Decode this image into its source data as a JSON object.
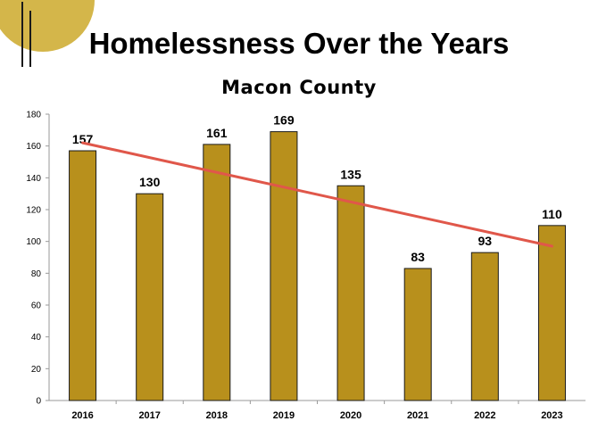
{
  "header": {
    "title": "Homelessness Over the Years",
    "subtitle": "Macon County"
  },
  "colors": {
    "bar": "#b8901c",
    "bar_stroke": "#1a1a1a",
    "trendline": "#e0574a",
    "decor_circle": "#d4b64a"
  },
  "chart_data": {
    "type": "bar",
    "title": "Macon County",
    "categories": [
      "2016",
      "2017",
      "2018",
      "2019",
      "2020",
      "2021",
      "2022",
      "2023"
    ],
    "values": [
      157,
      130,
      161,
      169,
      135,
      83,
      93,
      110
    ],
    "data_labels": [
      "157",
      "130",
      "161",
      "169",
      "135",
      "83",
      "93",
      "110"
    ],
    "ylim": [
      0,
      180
    ],
    "yticks": [
      0,
      20,
      40,
      60,
      80,
      100,
      120,
      140,
      160,
      180
    ],
    "ytick_labels": [
      "0",
      "20",
      "40",
      "60",
      "80",
      "100",
      "120",
      "140",
      "160",
      "180"
    ],
    "xlabel": "",
    "ylabel": "",
    "grid": false,
    "trendline": {
      "type": "linear",
      "start": 162,
      "end": 97
    }
  }
}
